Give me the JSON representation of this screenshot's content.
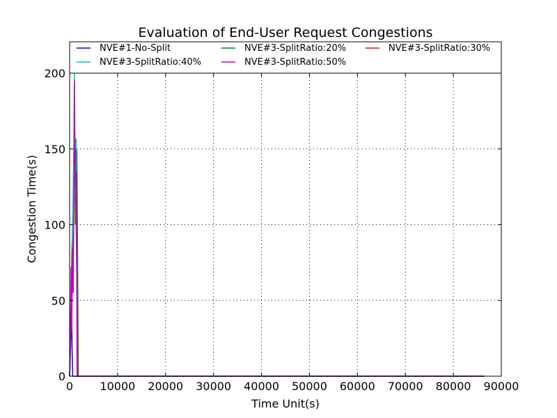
{
  "chart_data": {
    "type": "line",
    "title": "Evaluation of End-User Request Congestions",
    "xlabel": "Time Unit(s)",
    "ylabel": "Congestion Time(s)",
    "xlim": [
      0,
      90000
    ],
    "ylim": [
      0,
      200
    ],
    "xticks": [
      0,
      10000,
      20000,
      30000,
      40000,
      50000,
      60000,
      70000,
      80000,
      90000
    ],
    "yticks": [
      0,
      50,
      100,
      150,
      200
    ],
    "grid": true,
    "legend_position": "top",
    "series": [
      {
        "name": "NVE#1-No-Split",
        "color": "#0000ff",
        "points": [
          [
            0,
            0
          ],
          [
            120,
            10
          ],
          [
            250,
            35
          ],
          [
            380,
            72
          ],
          [
            500,
            20
          ],
          [
            640,
            0
          ],
          [
            86500,
            0
          ]
        ]
      },
      {
        "name": "NVE#3-SplitRatio:20%",
        "color": "#008000",
        "points": [
          [
            0,
            0
          ],
          [
            200,
            40
          ],
          [
            500,
            85
          ],
          [
            800,
            120
          ],
          [
            1000,
            185
          ],
          [
            1200,
            100
          ],
          [
            1500,
            150
          ],
          [
            1700,
            60
          ],
          [
            1800,
            0
          ],
          [
            86500,
            0
          ]
        ]
      },
      {
        "name": "NVE#3-SplitRatio:30%",
        "color": "#ff0000",
        "points": [
          [
            0,
            0
          ],
          [
            300,
            30
          ],
          [
            600,
            70
          ],
          [
            900,
            140
          ],
          [
            1100,
            160
          ],
          [
            1400,
            90
          ],
          [
            1600,
            40
          ],
          [
            1700,
            0
          ],
          [
            86500,
            0
          ]
        ]
      },
      {
        "name": "NVE#3-SplitRatio:40%",
        "color": "#00bfbf",
        "points": [
          [
            0,
            0
          ],
          [
            250,
            45
          ],
          [
            550,
            80
          ],
          [
            850,
            145
          ],
          [
            1000,
            200
          ],
          [
            1200,
            120
          ],
          [
            1350,
            157
          ],
          [
            1500,
            90
          ],
          [
            1600,
            0
          ],
          [
            86500,
            0
          ]
        ]
      },
      {
        "name": "NVE#3-SplitRatio:50%",
        "color": "#bf00bf",
        "points": [
          [
            0,
            0
          ],
          [
            150,
            20
          ],
          [
            300,
            72
          ],
          [
            450,
            30
          ],
          [
            600,
            85
          ],
          [
            750,
            55
          ],
          [
            900,
            120
          ],
          [
            1000,
            195
          ],
          [
            1100,
            140
          ],
          [
            1200,
            150
          ],
          [
            1300,
            110
          ],
          [
            1400,
            135
          ],
          [
            1500,
            60
          ],
          [
            1550,
            0
          ],
          [
            86500,
            0
          ]
        ]
      }
    ]
  }
}
